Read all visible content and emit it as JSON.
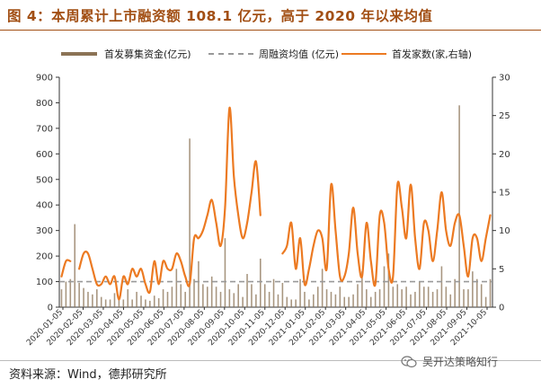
{
  "title": "图 4：本周累计上市融资额 108.1 亿元，高于 2020 年以来均值",
  "source": "资料来源：Wind，德邦研究所",
  "watermark": "吴开达策略知行",
  "watermark_icon": "wechat-icon",
  "colors": {
    "title": "#a24f14",
    "bars": "#8b7355",
    "line": "#ec7a22",
    "avg": "#999999",
    "axis": "#333333"
  },
  "chart_data": {
    "type": "bar+line",
    "legend": [
      {
        "label": "首发募集资金(亿元)",
        "kind": "bar"
      },
      {
        "label": "周融资均值 (亿元)",
        "kind": "dashed-line"
      },
      {
        "label": "首发家数(家,右轴)",
        "kind": "line"
      }
    ],
    "legend_position": "top",
    "grid": false,
    "y_left": {
      "min": 0,
      "max": 900,
      "ticks": [
        0,
        100,
        200,
        300,
        400,
        500,
        600,
        700,
        800,
        900
      ]
    },
    "y_right": {
      "min": 0,
      "max": 30,
      "ticks": [
        0,
        5,
        10,
        15,
        20,
        25,
        30
      ]
    },
    "x_tick_labels": [
      "2020-01-05",
      "2020-02-05",
      "2020-03-05",
      "2020-04-05",
      "2020-05-05",
      "2020-06-05",
      "2020-07-05",
      "2020-08-05",
      "2020-09-05",
      "2020-10-05",
      "2020-11-05",
      "2020-12-05",
      "2021-01-05",
      "2021-02-05",
      "2021-03-05",
      "2021-04-05",
      "2021-05-05",
      "2021-06-05",
      "2021-07-05",
      "2021-08-05",
      "2021-09-05",
      "2021-10-05"
    ],
    "weeks": 98,
    "average_line": 100,
    "series": [
      {
        "name": "首发募集资金(亿元)",
        "axis": "left",
        "values": [
          70,
          100,
          110,
          325,
          95,
          75,
          60,
          50,
          70,
          40,
          30,
          30,
          55,
          35,
          30,
          70,
          30,
          60,
          45,
          30,
          25,
          45,
          35,
          70,
          60,
          80,
          150,
          90,
          60,
          660,
          110,
          180,
          90,
          80,
          120,
          80,
          60,
          270,
          70,
          55,
          90,
          40,
          130,
          90,
          50,
          190,
          90,
          60,
          110,
          50,
          95,
          40,
          30,
          30,
          110,
          60,
          30,
          50,
          80,
          150,
          70,
          60,
          50,
          80,
          40,
          40,
          50,
          90,
          140,
          70,
          40,
          60,
          70,
          160,
          210,
          80,
          90,
          70,
          80,
          50,
          60,
          100,
          80,
          80,
          60,
          70,
          160,
          80,
          50,
          110,
          790,
          70,
          70,
          140,
          110,
          90,
          40,
          110
        ],
        "missing": []
      },
      {
        "name": "首发家数(家,右轴)",
        "axis": "right",
        "values": [
          4,
          6,
          6,
          null,
          5,
          7,
          7,
          5,
          3,
          3,
          4,
          3,
          4,
          1,
          4,
          3,
          5,
          4,
          5,
          3,
          2,
          6,
          3,
          6,
          5,
          5,
          7,
          6,
          4,
          3,
          9,
          9,
          10,
          12,
          14,
          11,
          8,
          13,
          26,
          17,
          12,
          9,
          11,
          15,
          19,
          12,
          null,
          null,
          null,
          null,
          7,
          8,
          11,
          5,
          9,
          3,
          5,
          8,
          10,
          9,
          5,
          16,
          10,
          4,
          4,
          7,
          13,
          7,
          4,
          11,
          6,
          3,
          12,
          11,
          5,
          4,
          16,
          13,
          9,
          16,
          9,
          5,
          11,
          10,
          6,
          10,
          15,
          10,
          8,
          11,
          12,
          8,
          4,
          9,
          9,
          6,
          9,
          12
        ],
        "missing": "null = gap in line"
      }
    ]
  }
}
